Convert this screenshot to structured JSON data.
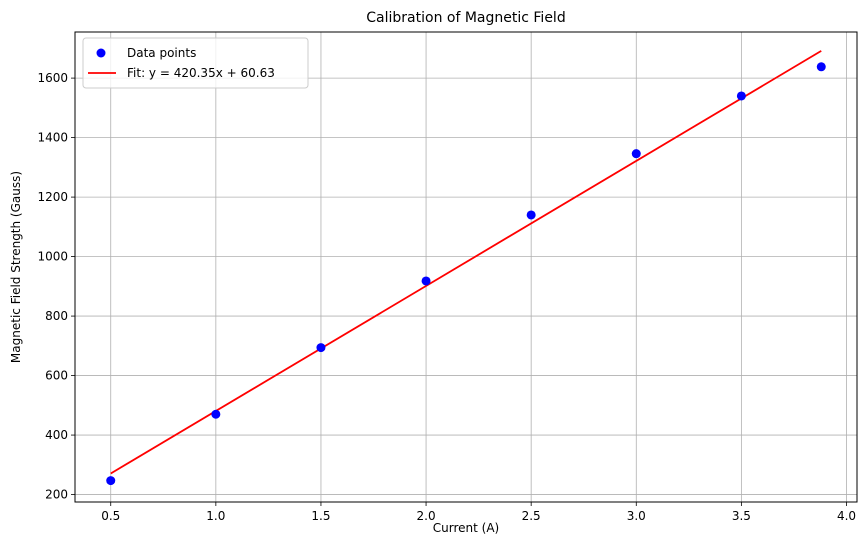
{
  "chart_data": {
    "type": "scatter",
    "title": "Calibration of Magnetic Field",
    "xlabel": "Current (A)",
    "ylabel": "Magnetic Field Strength (Gauss)",
    "xlim": [
      0.33,
      4.05
    ],
    "ylim": [
      175,
      1755
    ],
    "xticks": [
      0.5,
      1.0,
      1.5,
      2.0,
      2.5,
      3.0,
      3.5,
      4.0
    ],
    "xtick_labels": [
      "0.5",
      "1.0",
      "1.5",
      "2.0",
      "2.5",
      "3.0",
      "3.5",
      "4.0"
    ],
    "yticks": [
      200,
      400,
      600,
      800,
      1000,
      1200,
      1400,
      1600
    ],
    "ytick_labels": [
      "200",
      "400",
      "600",
      "800",
      "1000",
      "1200",
      "1400",
      "1600"
    ],
    "grid": true,
    "legend_position": "top-left",
    "series": [
      {
        "name": "Data points",
        "kind": "scatter",
        "color": "#0000ff",
        "x": [
          0.5,
          1.0,
          1.5,
          2.0,
          2.5,
          3.0,
          3.5,
          3.88
        ],
        "y": [
          247,
          470,
          694,
          918,
          1140,
          1346,
          1540,
          1638
        ]
      },
      {
        "name": "Fit: y = 420.35x + 60.63",
        "kind": "line",
        "color": "#ff0000",
        "slope": 420.35,
        "intercept": 60.63,
        "x": [
          0.5,
          3.88
        ],
        "y": [
          270.8,
          1691.6
        ]
      }
    ]
  }
}
